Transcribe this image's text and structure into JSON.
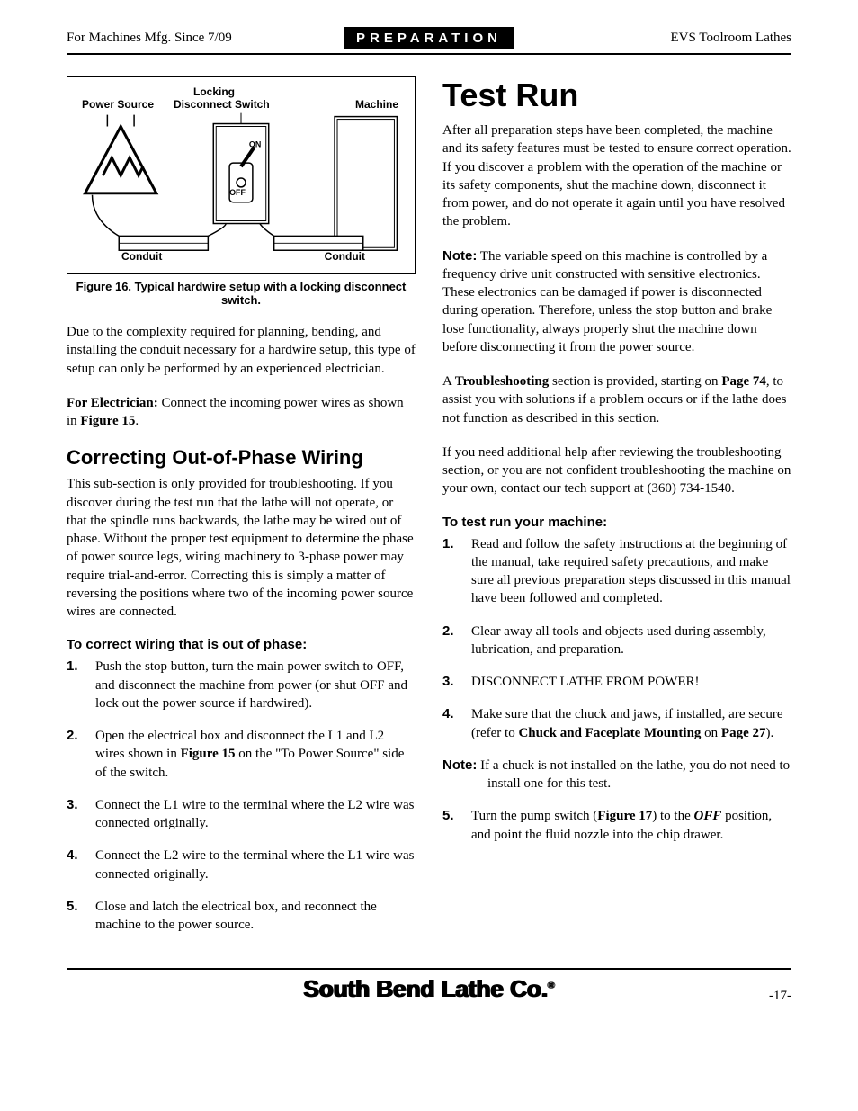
{
  "header": {
    "left": "For Machines Mfg. Since 7/09",
    "badge": "PREPARATION",
    "right": "EVS Toolroom Lathes"
  },
  "figure": {
    "caption": "Figure 16. Typical hardwire setup with a locking disconnect switch.",
    "labels": {
      "power_source": "Power Source",
      "locking": "Locking",
      "disconnect": "Disconnect Switch",
      "machine": "Machine",
      "conduit_l": "Conduit",
      "conduit_r": "Conduit",
      "on": "ON",
      "off": "OFF"
    }
  },
  "left": {
    "p1": "Due to the complexity required for planning, bending, and installing the conduit necessary for a hardwire setup, this type of setup can only be performed by an experienced electrician.",
    "p2a": "For Electrician:",
    "p2b": " Connect the incoming power wires as shown in ",
    "p2c": "Figure 15",
    "p2d": ".",
    "h2": "Correcting Out-of-Phase Wiring",
    "p3": "This sub-section is only provided for troubleshooting. If you discover during the test run that the lathe will not operate, or that the spindle runs backwards, the lathe may be wired out of phase. Without the proper test equipment to determine the phase of power source legs, wiring machinery to 3-phase power may require trial-and-error. Correcting this is simply a matter of reversing the positions where two of the incoming power source wires are connected.",
    "list_heading": "To correct wiring that is out of phase:",
    "steps": [
      "Push the stop button, turn the main power switch to OFF, and disconnect the machine from power (or shut OFF and lock out the power source if hardwired).",
      "Open the electrical box and disconnect the L1 and L2 wires shown in <b>Figure 15</b> on the \"To Power Source\" side of the switch.",
      "Connect the L1 wire to the terminal where the L2 wire was connected originally.",
      "Connect the L2 wire to the terminal where the L1 wire was connected originally.",
      "Close and latch the electrical box, and reconnect the machine to the power source."
    ]
  },
  "right": {
    "h1": "Test Run",
    "p1": "After all preparation steps have been completed, the machine and its safety features must be tested to ensure correct operation. If you discover a problem with the operation of the machine or its safety components, shut the machine down, disconnect it from power, and do not operate it again until you have resolved the problem.",
    "p2": "<b style=\"font-family:Arial,Helvetica,sans-serif\">Note:</b> The variable speed on this machine is controlled by a frequency drive unit constructed with sensitive electronics. These electronics can be damaged if power is disconnected during operation. Therefore, unless the stop button and brake lose functionality, always properly shut the machine down before disconnecting it from the power source.",
    "p3": "A <b>Troubleshooting</b> section is provided, starting on <b>Page 74</b>, to assist you with solutions if a problem occurs or if the lathe does not function as described in this section.",
    "p4": "If you need additional help after reviewing the troubleshooting section, or you are not confident troubleshooting the machine on your own, contact our tech support at (360) 734-1540.",
    "list_heading": "To test run your machine:",
    "steps": [
      "Read and follow the safety instructions at the beginning of the manual, take required safety precautions, and make sure all previous preparation steps discussed in this manual have been followed and completed.",
      "Clear away all tools and objects used during assembly, lubrication, and preparation.",
      "DISCONNECT LATHE FROM POWER!",
      "Make sure that the chuck and jaws, if installed, are secure (refer to <b>Chuck and Faceplate Mounting</b> on <b>Page 27</b>)."
    ],
    "note": "<b style=\"font-family:Arial,Helvetica,sans-serif\">Note:</b> If a chuck is not installed on the lathe, you do not need to install one for this test.",
    "step5": "Turn the pump switch (<b>Figure 17</b>) to the <b><i>OFF</i></b> position, and point the fluid nozzle into the chip drawer."
  },
  "footer": {
    "brand": "South Bend Lathe Co.",
    "page": "-17-"
  }
}
